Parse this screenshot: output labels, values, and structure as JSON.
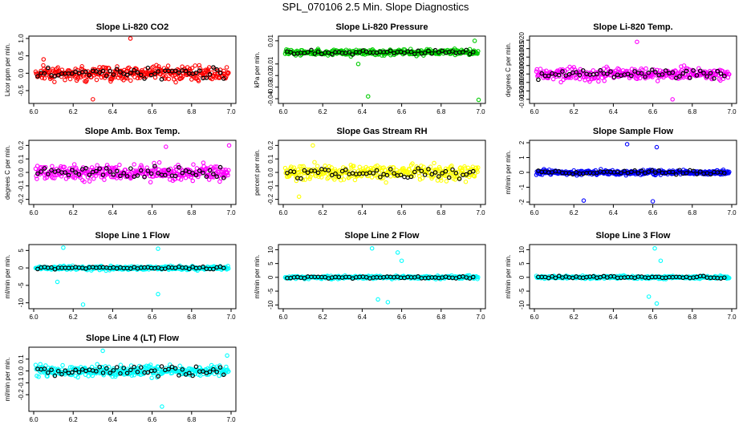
{
  "title": "SPL_070106  2.5 Min. Slope Diagnostics",
  "chart_data": [
    {
      "type": "scatter",
      "title": "Slope Li-820 CO2",
      "ylabel": "Licor ppm per min.",
      "color": "#ff0000",
      "xlim": [
        6.0,
        7.0
      ],
      "ylim": [
        -0.8,
        1.0
      ],
      "x_ticks": [
        "6.0",
        "6.2",
        "6.4",
        "6.6",
        "6.8",
        "7.0"
      ],
      "x_tick_values": [
        6.0,
        6.2,
        6.4,
        6.6,
        6.8,
        7.0
      ],
      "y_ticks": [
        "-0.5",
        "0.0",
        "0.5",
        "1.0"
      ],
      "y_tick_values": [
        -0.5,
        0.0,
        0.5,
        1.0
      ],
      "spread": 0.32,
      "outliers": [
        [
          6.49,
          1.0
        ],
        [
          6.05,
          0.4
        ],
        [
          6.3,
          -0.75
        ]
      ]
    },
    {
      "type": "scatter",
      "title": "Slope Li-820 Pressure",
      "ylabel": "kPa per min.",
      "color": "#00cc00",
      "xlim": [
        6.0,
        7.0
      ],
      "ylim": [
        -0.042,
        0.012
      ],
      "x_ticks": [
        "6.0",
        "6.2",
        "6.4",
        "6.6",
        "6.8",
        "7.0"
      ],
      "x_tick_values": [
        6.0,
        6.2,
        6.4,
        6.6,
        6.8,
        7.0
      ],
      "y_ticks": [
        "-0.04",
        "-0.03",
        "-0.02",
        "-0.01",
        "0.01"
      ],
      "y_tick_values": [
        -0.04,
        -0.03,
        -0.02,
        -0.01,
        0.01
      ],
      "spread": 0.004,
      "outliers": [
        [
          6.43,
          -0.038
        ],
        [
          6.99,
          -0.041
        ],
        [
          6.97,
          0.01
        ],
        [
          6.38,
          -0.01
        ]
      ]
    },
    {
      "type": "scatter",
      "title": "Slope Li-820 Temp.",
      "ylabel": "degrees C per min.",
      "color": "#ff00ff",
      "xlim": [
        6.0,
        7.0
      ],
      "ylim": [
        -0.016,
        0.021
      ],
      "x_ticks": [
        "6.0",
        "6.2",
        "6.4",
        "6.6",
        "6.8",
        "7.0"
      ],
      "x_tick_values": [
        6.0,
        6.2,
        6.4,
        6.6,
        6.8,
        7.0
      ],
      "y_ticks": [
        "-0.015",
        "-0.005",
        "0.005",
        "0.015"
      ],
      "y_tick_values": [
        -0.015,
        -0.005,
        0.005,
        0.015
      ],
      "y_ticks2": [
        "-0.010",
        "0.000",
        "0.010",
        "0.020"
      ],
      "y_tick_values2": [
        -0.01,
        0.0,
        0.01,
        0.02
      ],
      "spread": 0.006,
      "outliers": [
        [
          6.52,
          0.019
        ],
        [
          6.7,
          -0.015
        ]
      ]
    },
    {
      "type": "scatter",
      "title": "Slope Amb. Box Temp.",
      "ylabel": "degrees C per min.",
      "color": "#ff00ff",
      "xlim": [
        6.0,
        7.0
      ],
      "ylim": [
        -0.22,
        0.22
      ],
      "x_ticks": [
        "6.0",
        "6.2",
        "6.4",
        "6.6",
        "6.8",
        "7.0"
      ],
      "x_tick_values": [
        6.0,
        6.2,
        6.4,
        6.6,
        6.8,
        7.0
      ],
      "y_ticks": [
        "-0.2",
        "-0.1",
        "0.0",
        "0.1",
        "0.2"
      ],
      "y_tick_values": [
        -0.2,
        -0.1,
        0.0,
        0.1,
        0.2
      ],
      "spread": 0.09,
      "outliers": [
        [
          6.99,
          0.2
        ],
        [
          6.67,
          0.19
        ]
      ]
    },
    {
      "type": "scatter",
      "title": "Slope Gas Stream RH",
      "ylabel": "percent per min.",
      "color": "#ffff00",
      "xlim": [
        6.0,
        7.0
      ],
      "ylim": [
        -0.22,
        0.22
      ],
      "x_ticks": [
        "6.0",
        "6.2",
        "6.4",
        "6.6",
        "6.8",
        "7.0"
      ],
      "x_tick_values": [
        6.0,
        6.2,
        6.4,
        6.6,
        6.8,
        7.0
      ],
      "y_ticks": [
        "-0.2",
        "-0.1",
        "0.0",
        "0.1",
        "0.2"
      ],
      "y_tick_values": [
        -0.2,
        -0.1,
        0.0,
        0.1,
        0.2
      ],
      "spread": 0.09,
      "outliers": [
        [
          6.15,
          0.2
        ],
        [
          6.08,
          -0.18
        ]
      ]
    },
    {
      "type": "scatter",
      "title": "Slope Sample Flow",
      "ylabel": "ml/min per min.",
      "color": "#0000ff",
      "xlim": [
        6.0,
        7.0
      ],
      "ylim": [
        -2.0,
        2.0
      ],
      "x_ticks": [
        "6.0",
        "6.2",
        "6.4",
        "6.6",
        "6.8",
        "7.0"
      ],
      "x_tick_values": [
        6.0,
        6.2,
        6.4,
        6.6,
        6.8,
        7.0
      ],
      "y_ticks": [
        "-2",
        "-1",
        "0",
        "1",
        "2"
      ],
      "y_tick_values": [
        -2,
        -1,
        0,
        1,
        2
      ],
      "spread": 0.28,
      "outliers": [
        [
          6.47,
          1.9
        ],
        [
          6.62,
          1.7
        ],
        [
          6.25,
          -1.9
        ],
        [
          6.6,
          -1.95
        ]
      ]
    },
    {
      "type": "scatter",
      "title": "Slope Line 1 Flow",
      "ylabel": "ml/min per min.",
      "color": "#00ffff",
      "xlim": [
        6.0,
        7.0
      ],
      "ylim": [
        -11,
        6
      ],
      "x_ticks": [
        "6.0",
        "6.2",
        "6.4",
        "6.6",
        "6.8",
        "7.0"
      ],
      "x_tick_values": [
        6.0,
        6.2,
        6.4,
        6.6,
        6.8,
        7.0
      ],
      "y_ticks": [
        "-10",
        "-5",
        "0",
        "5"
      ],
      "y_tick_values": [
        -10,
        -5,
        0,
        5
      ],
      "spread": 0.9,
      "outliers": [
        [
          6.25,
          -10.5
        ],
        [
          6.15,
          5.8
        ],
        [
          6.63,
          -7.5
        ],
        [
          6.63,
          5.5
        ],
        [
          6.12,
          -4
        ]
      ]
    },
    {
      "type": "scatter",
      "title": "Slope Line 2 Flow",
      "ylabel": "ml/min per min.",
      "color": "#00ffff",
      "xlim": [
        6.0,
        7.0
      ],
      "ylim": [
        -10.5,
        11
      ],
      "x_ticks": [
        "6.0",
        "6.2",
        "6.4",
        "6.6",
        "6.8",
        "7.0"
      ],
      "x_tick_values": [
        6.0,
        6.2,
        6.4,
        6.6,
        6.8,
        7.0
      ],
      "y_ticks": [
        "-10",
        "-5",
        "0",
        "5",
        "10"
      ],
      "y_tick_values": [
        -10,
        -5,
        0,
        5,
        10
      ],
      "spread": 0.9,
      "outliers": [
        [
          6.45,
          10.5
        ],
        [
          6.58,
          9
        ],
        [
          6.48,
          -8
        ],
        [
          6.53,
          -9
        ],
        [
          6.6,
          6
        ]
      ]
    },
    {
      "type": "scatter",
      "title": "Slope Line 3 Flow",
      "ylabel": "ml/min per min.",
      "color": "#00ffff",
      "xlim": [
        6.0,
        7.0
      ],
      "ylim": [
        -10.5,
        11
      ],
      "x_ticks": [
        "6.0",
        "6.2",
        "6.4",
        "6.6",
        "6.8",
        "7.0"
      ],
      "x_tick_values": [
        6.0,
        6.2,
        6.4,
        6.6,
        6.8,
        7.0
      ],
      "y_ticks": [
        "-10",
        "-5",
        "0",
        "5",
        "10"
      ],
      "y_tick_values": [
        -10,
        -5,
        0,
        5,
        10
      ],
      "spread": 0.9,
      "outliers": [
        [
          6.61,
          10.5
        ],
        [
          6.62,
          -9.5
        ],
        [
          6.64,
          6
        ],
        [
          6.58,
          -7
        ]
      ]
    },
    {
      "type": "scatter",
      "title": "Slope Line 4 (LT) Flow",
      "ylabel": "ml/min per min.",
      "color": "#00ffff",
      "xlim": [
        6.0,
        7.0
      ],
      "ylim": [
        -0.32,
        0.18
      ],
      "x_ticks": [
        "6.0",
        "6.2",
        "6.4",
        "6.6",
        "6.8",
        "7.0"
      ],
      "x_tick_values": [
        6.0,
        6.2,
        6.4,
        6.6,
        6.8,
        7.0
      ],
      "y_ticks": [
        "-0.2",
        "-0.1",
        "0.0",
        "0.1"
      ],
      "y_tick_values": [
        -0.2,
        -0.1,
        0.0,
        0.1
      ],
      "spread": 0.08,
      "outliers": [
        [
          6.35,
          0.17
        ],
        [
          6.98,
          0.13
        ],
        [
          6.65,
          -0.3
        ]
      ]
    }
  ]
}
